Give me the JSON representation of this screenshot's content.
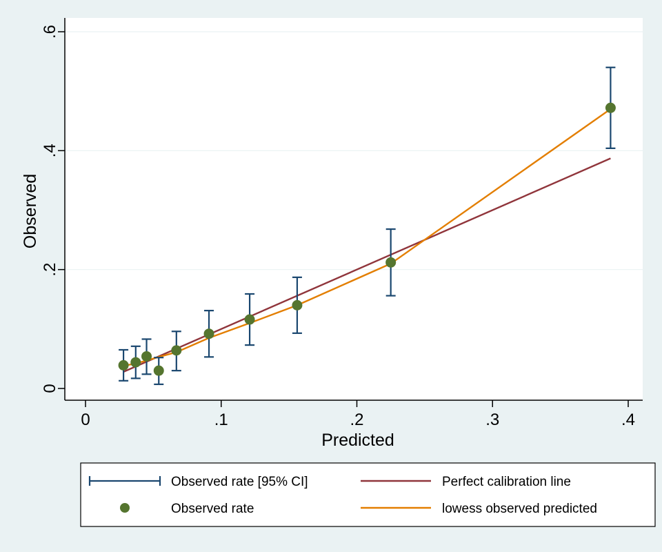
{
  "chart_data": {
    "type": "scatter",
    "xlabel": "Predicted",
    "ylabel": "Observed",
    "xlim": [
      0,
      0.41
    ],
    "ylim": [
      0,
      0.6
    ],
    "xticks": [
      0,
      0.1,
      0.2,
      0.3,
      0.4
    ],
    "xtick_labels": [
      "0",
      ".1",
      ".2",
      ".3",
      ".4"
    ],
    "yticks": [
      0,
      0.2,
      0.4,
      0.6
    ],
    "ytick_labels": [
      "0",
      ".2",
      ".4",
      ".6"
    ],
    "grid": "horizontal",
    "legend_position": "bottom",
    "colors": {
      "background": "#eaf2f3",
      "plot_area": "#ffffff",
      "grid": "#eaf2f3",
      "ci": "#1a476f",
      "point": "#55752f",
      "perfect": "#90353b",
      "lowess": "#e37e00"
    },
    "series": [
      {
        "name": "Observed rate [95% CI]",
        "kind": "errorbar",
        "x": [
          0.028,
          0.037,
          0.045,
          0.054,
          0.067,
          0.091,
          0.121,
          0.156,
          0.225,
          0.387
        ],
        "lo": [
          0.013,
          0.017,
          0.024,
          0.007,
          0.03,
          0.053,
          0.073,
          0.093,
          0.156,
          0.404
        ],
        "hi": [
          0.065,
          0.071,
          0.083,
          0.052,
          0.096,
          0.131,
          0.159,
          0.187,
          0.268,
          0.54
        ]
      },
      {
        "name": "Observed rate",
        "kind": "scatter",
        "x": [
          0.028,
          0.037,
          0.045,
          0.054,
          0.067,
          0.091,
          0.121,
          0.156,
          0.225,
          0.387
        ],
        "y": [
          0.039,
          0.044,
          0.054,
          0.03,
          0.064,
          0.092,
          0.116,
          0.14,
          0.212,
          0.472
        ]
      },
      {
        "name": "Perfect calibration line",
        "kind": "line",
        "x": [
          0.028,
          0.387
        ],
        "y": [
          0.028,
          0.387
        ]
      },
      {
        "name": "lowess observed predicted",
        "kind": "line",
        "x": [
          0.028,
          0.037,
          0.045,
          0.054,
          0.067,
          0.091,
          0.121,
          0.156,
          0.225,
          0.387
        ],
        "y": [
          0.038,
          0.042,
          0.047,
          0.053,
          0.061,
          0.085,
          0.11,
          0.14,
          0.21,
          0.47
        ]
      }
    ]
  }
}
